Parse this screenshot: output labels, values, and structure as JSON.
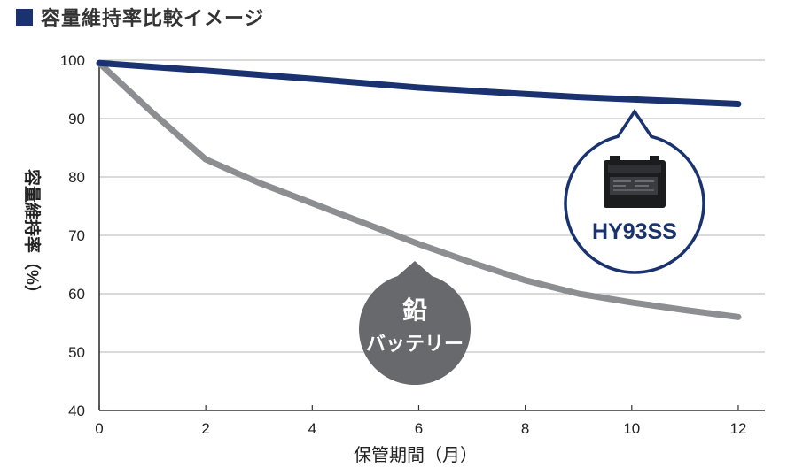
{
  "title": "容量維持率比較イメージ",
  "chart_data": {
    "type": "line",
    "title": "容量維持率比較イメージ",
    "xlabel": "保管期間（月）",
    "ylabel": "容量維持率（%）",
    "xlim": [
      0,
      12.5
    ],
    "ylim": [
      40,
      100
    ],
    "xticks": [
      "0",
      "2",
      "4",
      "6",
      "8",
      "10",
      "12"
    ],
    "yticks": [
      "40",
      "50",
      "60",
      "70",
      "80",
      "90",
      "100"
    ],
    "grid": "horizontal",
    "series": [
      {
        "name": "HY93SS",
        "color": "#1a3370",
        "x": [
          0,
          2,
          4,
          6,
          8,
          9,
          10,
          12
        ],
        "y": [
          99.5,
          98.2,
          96.8,
          95.3,
          94.2,
          93.7,
          93.3,
          92.5
        ]
      },
      {
        "name": "鉛バッテリー",
        "color": "#8c8e91",
        "x": [
          0,
          1,
          2,
          3,
          4,
          5,
          6,
          7,
          8,
          9,
          10,
          11,
          12
        ],
        "y": [
          99.5,
          91,
          83,
          79,
          75.5,
          72,
          68.5,
          65.3,
          62.3,
          60,
          58.5,
          57.2,
          56
        ]
      }
    ],
    "annotations": [
      {
        "series": "HY93SS",
        "label": "HY93SS",
        "color": "#1a3370",
        "icon": "battery-icon"
      },
      {
        "series": "鉛バッテリー",
        "label_line1": "鉛",
        "label_line2": "バッテリー",
        "color": "#67696c"
      }
    ]
  }
}
